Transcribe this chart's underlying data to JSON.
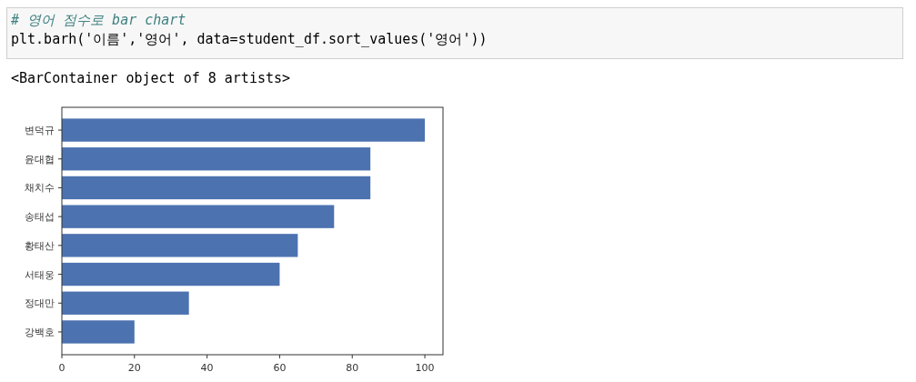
{
  "chart_data": {
    "type": "bar",
    "orientation": "horizontal",
    "categories": [
      "변덕규",
      "윤대협",
      "채치수",
      "송태섭",
      "황태산",
      "서태웅",
      "정대만",
      "강백호"
    ],
    "values": [
      100,
      85,
      85,
      75,
      65,
      60,
      35,
      20
    ],
    "color": "#4c72b0",
    "xlim": [
      0,
      105
    ],
    "xticks": [
      0,
      20,
      40,
      60,
      80,
      100
    ],
    "annotations": [
      "# 영어 점수로 bar chart",
      "plt.barh('이름','영어', data=student_df.sort_values('영어'))",
      "<BarContainer object of 8 artists>"
    ]
  }
}
